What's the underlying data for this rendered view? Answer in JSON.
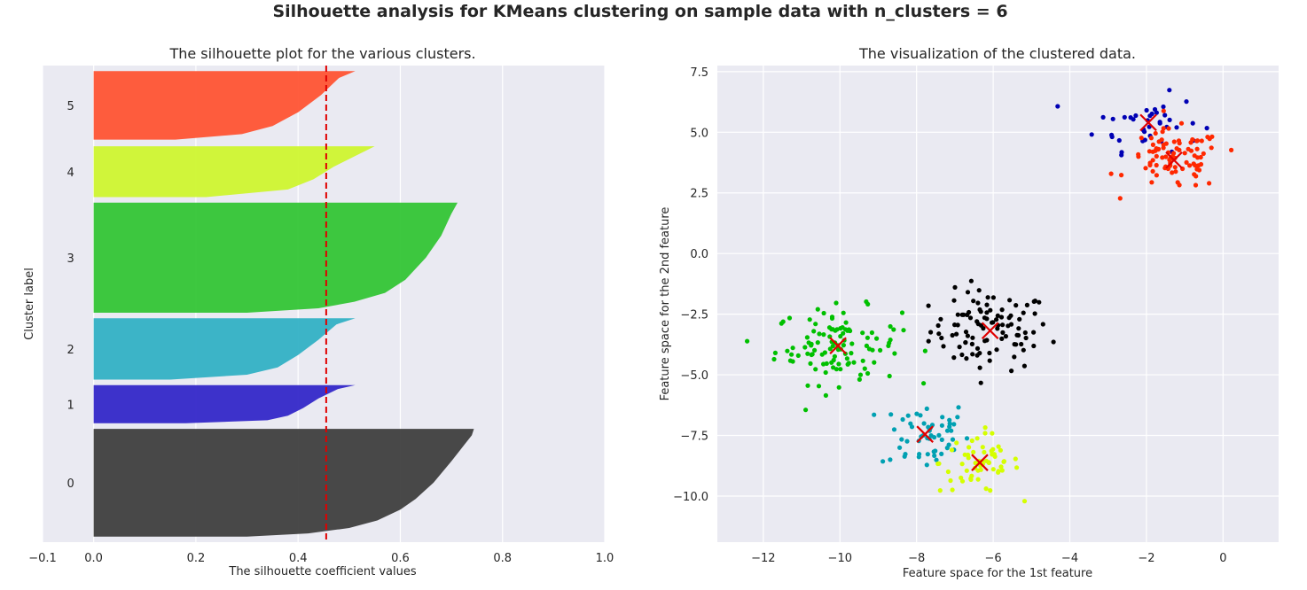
{
  "figure": {
    "suptitle": "Silhouette analysis for KMeans clustering on sample data with n_clusters = 6"
  },
  "colors": {
    "background_axes": "#eaeaf2",
    "grid": "#ffffff",
    "average_line": "#e00000",
    "centers": "#e00000",
    "cluster_colors": [
      "#3a3a3a",
      "#2e22c8",
      "#2cafc3",
      "#2ec330",
      "#cdf52a",
      "#ff4f2e"
    ],
    "scatter_colors": [
      "#000000",
      "#00a0b2",
      "#0000b4",
      "#00c000",
      "#d5ff00",
      "#ff2800"
    ]
  },
  "chart_data": [
    {
      "type": "area",
      "title": "The silhouette plot for the various clusters.",
      "xlabel": "The silhouette coefficient values",
      "ylabel": "Cluster label",
      "xlim": [
        -0.1,
        1.0
      ],
      "xticks": [
        -0.1,
        0.0,
        0.2,
        0.4,
        0.6,
        0.8,
        1.0
      ],
      "xtick_labels": [
        "−0.1",
        "0.0",
        "0.2",
        "0.4",
        "0.6",
        "0.8",
        "1.0"
      ],
      "average_silhouette": 0.455,
      "grid": true,
      "clusters": [
        {
          "label": "0",
          "y_range": [
            10,
            205
          ],
          "profile": [
            [
              0,
              0.744
            ],
            [
              0.06,
              0.74
            ],
            [
              0.15,
              0.725
            ],
            [
              0.3,
              0.7
            ],
            [
              0.5,
              0.665
            ],
            [
              0.65,
              0.63
            ],
            [
              0.75,
              0.6
            ],
            [
              0.85,
              0.555
            ],
            [
              0.92,
              0.5
            ],
            [
              0.97,
              0.42
            ],
            [
              1.0,
              0.3
            ]
          ]
        },
        {
          "label": "1",
          "y_range": [
            215,
            284
          ],
          "profile": [
            [
              0,
              0.512
            ],
            [
              0.1,
              0.478
            ],
            [
              0.35,
              0.44
            ],
            [
              0.6,
              0.41
            ],
            [
              0.8,
              0.38
            ],
            [
              0.92,
              0.34
            ],
            [
              1.0,
              0.18
            ]
          ]
        },
        {
          "label": "2",
          "y_range": [
            294,
            405
          ],
          "profile": [
            [
              0,
              0.512
            ],
            [
              0.1,
              0.475
            ],
            [
              0.35,
              0.44
            ],
            [
              0.6,
              0.4
            ],
            [
              0.8,
              0.36
            ],
            [
              0.92,
              0.3
            ],
            [
              1.0,
              0.15
            ]
          ]
        },
        {
          "label": "3",
          "y_range": [
            415,
            614
          ],
          "profile": [
            [
              0,
              0.712
            ],
            [
              0.1,
              0.7
            ],
            [
              0.3,
              0.68
            ],
            [
              0.5,
              0.65
            ],
            [
              0.7,
              0.61
            ],
            [
              0.82,
              0.57
            ],
            [
              0.9,
              0.51
            ],
            [
              0.96,
              0.44
            ],
            [
              1.0,
              0.3
            ]
          ]
        },
        {
          "label": "4",
          "y_range": [
            624,
            716
          ],
          "profile": [
            [
              0,
              0.55
            ],
            [
              0.15,
              0.52
            ],
            [
              0.4,
              0.47
            ],
            [
              0.65,
              0.43
            ],
            [
              0.85,
              0.38
            ],
            [
              1.0,
              0.22
            ]
          ]
        },
        {
          "label": "5",
          "y_range": [
            728,
            852
          ],
          "profile": [
            [
              0,
              0.512
            ],
            [
              0.1,
              0.48
            ],
            [
              0.35,
              0.445
            ],
            [
              0.6,
              0.4
            ],
            [
              0.8,
              0.35
            ],
            [
              0.92,
              0.29
            ],
            [
              1.0,
              0.16
            ]
          ]
        }
      ]
    },
    {
      "type": "scatter",
      "title": "The visualization of the clustered data.",
      "xlabel": "Feature space for the 1st feature",
      "ylabel": "Feature space for the 2nd feature",
      "xlim": [
        -13.2,
        1.45
      ],
      "ylim": [
        -11.9,
        7.75
      ],
      "xticks": [
        -12,
        -10,
        -8,
        -6,
        -4,
        -2,
        0
      ],
      "xtick_labels": [
        "−12",
        "−10",
        "−8",
        "−6",
        "−4",
        "−2",
        "0"
      ],
      "yticks": [
        7.5,
        5.0,
        2.5,
        0.0,
        -2.5,
        -5.0,
        -7.5,
        -10.0
      ],
      "ytick_labels": [
        "7.5",
        "5.0",
        "2.5",
        "0.0",
        "−2.5",
        "−5.0",
        "−7.5",
        "−10.0"
      ],
      "grid": true,
      "clusters": [
        {
          "cluster": 0,
          "center": [
            -6.08,
            -3.18
          ],
          "spread": [
            0.78,
            0.82
          ],
          "n": 100
        },
        {
          "cluster": 1,
          "center": [
            -7.78,
            -7.45
          ],
          "spread": [
            0.58,
            0.75
          ],
          "n": 55
        },
        {
          "cluster": 2,
          "center": [
            -1.95,
            5.4
          ],
          "spread": [
            0.68,
            0.58
          ],
          "n": 40
        },
        {
          "cluster": 3,
          "center": [
            -10.05,
            -3.8
          ],
          "spread": [
            0.82,
            0.78
          ],
          "n": 110
        },
        {
          "cluster": 4,
          "center": [
            -6.35,
            -8.62
          ],
          "spread": [
            0.52,
            0.62
          ],
          "n": 60
        },
        {
          "cluster": 5,
          "center": [
            -1.28,
            3.85
          ],
          "spread": [
            0.62,
            0.62
          ],
          "n": 90
        }
      ]
    }
  ]
}
